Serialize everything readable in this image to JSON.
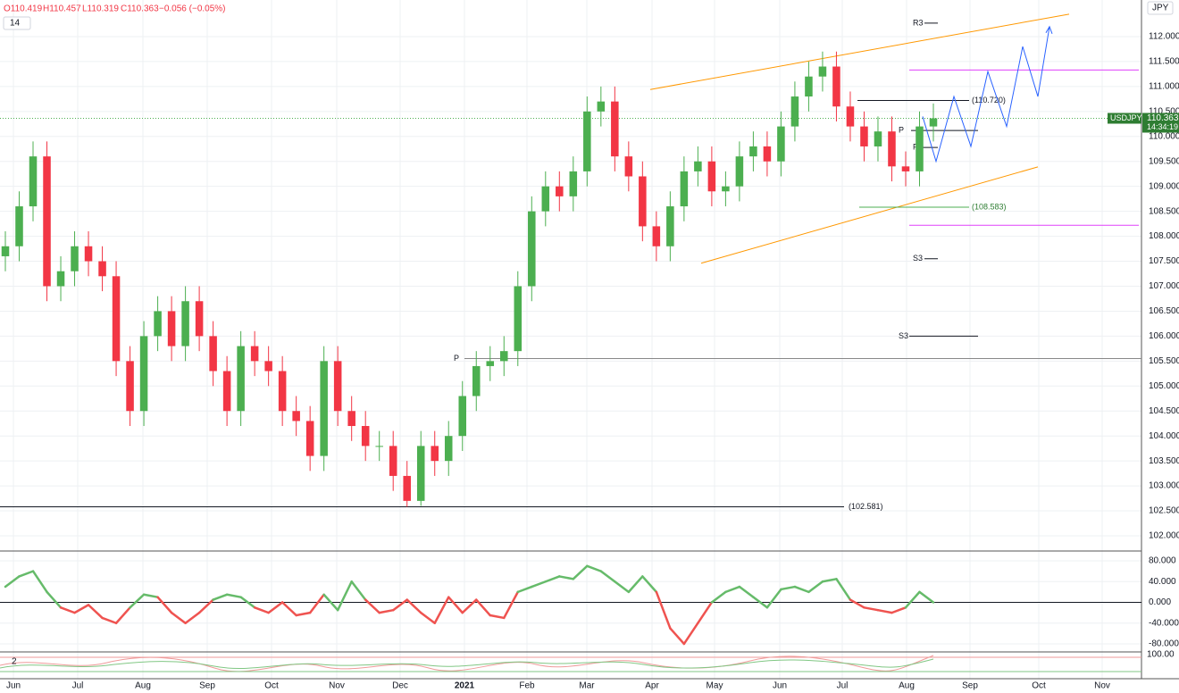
{
  "chart_data": {
    "type": "candlestick",
    "symbol": "USDJPY",
    "currency": "JPY",
    "header": {
      "open": "O110.419",
      "high": "H110.457",
      "low": "L110.319",
      "close": "C110.363",
      "change": "−0.056 (−0.05%)",
      "period": "14"
    },
    "last_price": 110.363,
    "countdown": "14:34:19",
    "ylim": [
      101.696,
      112.733
    ],
    "yticks": [
      {
        "value": 102,
        "label": "102.000"
      },
      {
        "value": 102.5,
        "label": "102.500"
      },
      {
        "value": 103,
        "label": "103.000"
      },
      {
        "value": 103.5,
        "label": "103.500"
      },
      {
        "value": 104,
        "label": "104.000"
      },
      {
        "value": 104.5,
        "label": "104.500"
      },
      {
        "value": 105,
        "label": "105.000"
      },
      {
        "value": 105.5,
        "label": "105.500"
      },
      {
        "value": 106,
        "label": "106.000"
      },
      {
        "value": 106.5,
        "label": "106.500"
      },
      {
        "value": 107,
        "label": "107.000"
      },
      {
        "value": 107.5,
        "label": "107.500"
      },
      {
        "value": 108,
        "label": "108.000"
      },
      {
        "value": 108.5,
        "label": "108.500"
      },
      {
        "value": 109,
        "label": "109.000"
      },
      {
        "value": 109.5,
        "label": "109.500"
      },
      {
        "value": 110,
        "label": "110.000"
      },
      {
        "value": 110.5,
        "label": "110.500"
      },
      {
        "value": 111,
        "label": "111.000"
      },
      {
        "value": 111.5,
        "label": "111.500"
      },
      {
        "value": 112,
        "label": "112.000"
      }
    ],
    "xticks": [
      "Jun",
      "Jul",
      "Aug",
      "Sep",
      "Oct",
      "Nov",
      "Dec",
      "2021",
      "Feb",
      "Mar",
      "Apr",
      "May",
      "Jun",
      "Jul",
      "Aug",
      "Sep",
      "Oct",
      "Nov"
    ],
    "up_color": "#4caf50",
    "down_color": "#f23645",
    "open": [
      107.6,
      107.8,
      108.6,
      109.6,
      107.0,
      107.3,
      107.8,
      107.5,
      107.2,
      105.5,
      104.5,
      106.0,
      106.5,
      105.8,
      106.7,
      106.0,
      105.3,
      104.5,
      105.8,
      105.5,
      105.3,
      104.5,
      104.3,
      103.6,
      105.5,
      104.5,
      104.2,
      103.8,
      103.8,
      103.2,
      102.7,
      103.8,
      103.5,
      104.0,
      104.8,
      105.4,
      105.5,
      105.7,
      107.0,
      108.5,
      109.0,
      108.8,
      109.3,
      110.5,
      110.7,
      109.6,
      109.2,
      108.2,
      107.8,
      108.6,
      109.3,
      109.5,
      108.9,
      109.0,
      109.6,
      109.8,
      109.5,
      110.2,
      110.8,
      111.2,
      111.4,
      110.6,
      110.2,
      109.8,
      110.1,
      109.4,
      109.3,
      110.2
    ],
    "high": [
      108.1,
      108.9,
      109.9,
      109.9,
      107.6,
      108.1,
      108.1,
      107.8,
      107.5,
      105.8,
      106.3,
      106.8,
      106.8,
      107.0,
      107.0,
      106.3,
      105.6,
      106.1,
      106.1,
      105.8,
      105.6,
      104.8,
      104.6,
      105.8,
      105.8,
      104.8,
      104.5,
      104.1,
      104.1,
      103.5,
      104.1,
      104.1,
      104.3,
      105.1,
      105.7,
      105.8,
      106.0,
      107.3,
      108.8,
      109.3,
      109.3,
      109.6,
      110.8,
      111.0,
      111.0,
      109.9,
      109.5,
      108.5,
      108.9,
      109.6,
      109.8,
      109.8,
      109.3,
      109.9,
      110.1,
      110.1,
      110.5,
      111.1,
      111.5,
      111.7,
      111.7,
      110.9,
      110.5,
      110.4,
      110.4,
      109.7,
      110.5,
      110.66
    ],
    "low": [
      107.3,
      107.5,
      108.3,
      106.7,
      106.7,
      107.0,
      107.2,
      106.9,
      105.2,
      104.2,
      104.2,
      105.7,
      105.5,
      105.5,
      105.7,
      105.0,
      104.2,
      104.2,
      105.2,
      105.0,
      104.2,
      104.0,
      103.3,
      103.3,
      104.2,
      103.9,
      103.5,
      103.5,
      102.9,
      102.581,
      102.6,
      103.2,
      103.2,
      103.7,
      104.5,
      105.1,
      105.2,
      105.4,
      106.7,
      108.2,
      108.5,
      108.5,
      109.0,
      110.2,
      109.3,
      108.9,
      107.9,
      107.5,
      107.5,
      108.3,
      109.0,
      108.6,
      108.6,
      108.7,
      109.3,
      109.2,
      109.2,
      109.9,
      110.5,
      110.9,
      110.3,
      109.9,
      109.5,
      109.5,
      109.1,
      109.0,
      109.0,
      109.9
    ],
    "close": [
      107.8,
      108.6,
      109.6,
      107.0,
      107.3,
      107.8,
      107.5,
      107.2,
      105.5,
      104.5,
      106.0,
      106.5,
      105.8,
      106.7,
      106.0,
      105.3,
      104.5,
      105.8,
      105.5,
      105.3,
      104.5,
      104.3,
      103.6,
      105.5,
      104.5,
      104.2,
      103.8,
      103.8,
      103.2,
      102.7,
      103.8,
      103.5,
      104.0,
      104.8,
      105.4,
      105.5,
      105.7,
      107.0,
      108.5,
      109.0,
      108.8,
      109.3,
      110.5,
      110.7,
      109.6,
      109.2,
      108.2,
      107.8,
      108.6,
      109.3,
      109.5,
      108.9,
      109.0,
      109.6,
      109.8,
      109.5,
      110.2,
      110.8,
      111.2,
      111.4,
      110.6,
      110.2,
      109.8,
      110.1,
      109.4,
      109.3,
      110.2,
      110.363
    ],
    "levels": [
      {
        "label": "R3",
        "value": 112.27
      },
      {
        "label": "(110.720)",
        "value": 110.72
      },
      {
        "label": "P",
        "value": 110.12
      },
      {
        "label": "P",
        "value": 109.78
      },
      {
        "label": "(108.583)",
        "value": 108.583
      },
      {
        "label": "S3",
        "value": 107.55
      },
      {
        "label": "S3",
        "value": 106.0
      },
      {
        "label": "P",
        "value": 105.55
      },
      {
        "label": "(102.581)",
        "value": 102.581
      }
    ],
    "bands": [
      {
        "color": "#e040fb",
        "value": 111.33
      },
      {
        "color": "#e040fb",
        "value": 108.22
      }
    ],
    "channel": {
      "color": "#ff9800",
      "upper": [
        110.94,
        112.45
      ],
      "lower": [
        107.46,
        109.39
      ]
    },
    "forecast": {
      "color": "#2962ff",
      "values": [
        110.4,
        109.5,
        110.8,
        109.8,
        111.3,
        110.2,
        111.8,
        110.8,
        112.2
      ]
    },
    "oscillator": {
      "ylim": [
        -95.5,
        98.9
      ],
      "yticks": [
        {
          "value": 80,
          "label": "80.000"
        },
        {
          "value": 40,
          "label": "40.000"
        },
        {
          "value": 0,
          "label": "0.000"
        },
        {
          "value": -40,
          "label": "-40.000"
        },
        {
          "value": -80,
          "label": "-80.000"
        }
      ],
      "up_color": "#66bb6a",
      "down_color": "#ef5350",
      "values": [
        30,
        50,
        60,
        20,
        -10,
        -20,
        -5,
        -30,
        -40,
        -10,
        15,
        10,
        -20,
        -40,
        -20,
        5,
        15,
        10,
        -10,
        -20,
        0,
        -25,
        -20,
        15,
        -15,
        40,
        5,
        -20,
        -15,
        5,
        -20,
        -40,
        10,
        -20,
        5,
        -25,
        -30,
        20,
        30,
        40,
        50,
        45,
        70,
        60,
        40,
        20,
        50,
        20,
        -50,
        -80,
        -40,
        0,
        20,
        30,
        10,
        -10,
        25,
        30,
        20,
        40,
        45,
        5,
        -10,
        -15,
        -20,
        -10,
        20,
        0
      ]
    },
    "stochastic": {
      "period": "2",
      "top_tick": "100.00"
    }
  }
}
